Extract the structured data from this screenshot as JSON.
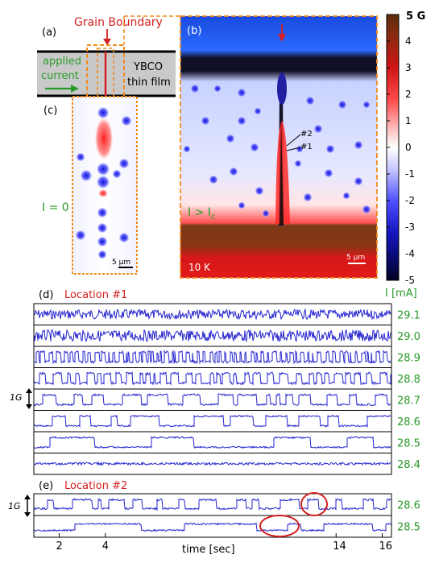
{
  "panel_a": {
    "tag": "(a)",
    "grain_boundary": "Grain Boundary",
    "applied": "applied",
    "current": "current",
    "film1": "YBCO",
    "film2": "thin film"
  },
  "panel_b": {
    "tag": "(b)",
    "marker2": "#2",
    "marker1": "#1",
    "cond_main": "I > I",
    "cond_sub": "c",
    "temp": "10 K",
    "scale": "5 μm"
  },
  "panel_c": {
    "tag": "(c)",
    "cond": "I = 0",
    "scale": "5 μm"
  },
  "colorbar": {
    "unit_label": "5 G",
    "ticks": [
      "4",
      "3",
      "2",
      "1",
      "0",
      "-1",
      "-2",
      "-3",
      "-4",
      "-5"
    ],
    "colors": [
      "#5a2c0c",
      "#b01010",
      "#ff2020",
      "#ff8080",
      "#ffffff",
      "#8080ff",
      "#2020ff",
      "#1010b0",
      "#000050"
    ]
  },
  "panel_d": {
    "tag": "(d)",
    "location": "Location #1",
    "current_header": "I [mA]",
    "currents": [
      "29.1",
      "29.0",
      "28.9",
      "28.8",
      "28.7",
      "28.6",
      "28.5",
      "28.4"
    ],
    "scale_bar": "1G"
  },
  "panel_e": {
    "tag": "(e)",
    "location": "Location #2",
    "currents": [
      "28.6",
      "28.5"
    ],
    "scale_bar": "1G"
  },
  "time_axis": {
    "label": "time [sec]",
    "ticks": [
      "2",
      "4",
      "14",
      "16"
    ]
  },
  "colors": {
    "trace": "#2525d0",
    "accent_red": "#d42020",
    "accent_green": "#2a9a2a",
    "frame_orange": "#f08a1e"
  }
}
